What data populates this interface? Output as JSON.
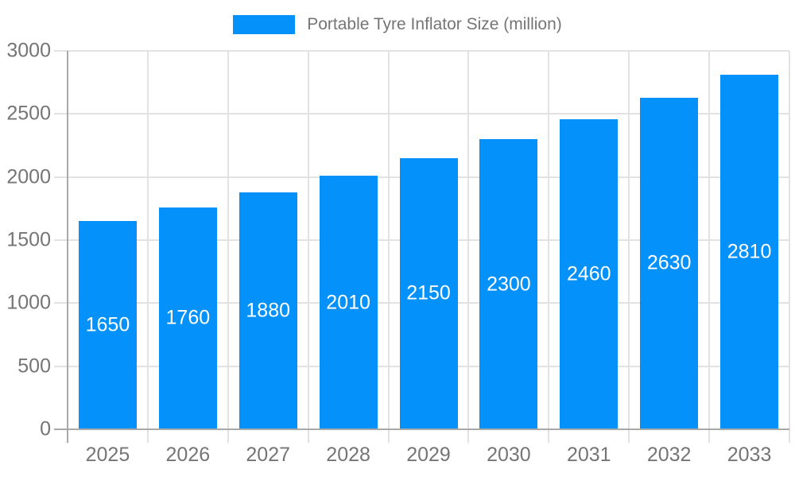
{
  "page": {
    "background": "#ffffff"
  },
  "legend": {
    "label": "Portable Tyre Inflator Size (million)"
  },
  "chart_data": {
    "type": "bar",
    "title": "Portable Tyre Inflator Size (million)",
    "categories": [
      "2025",
      "2026",
      "2027",
      "2028",
      "2029",
      "2030",
      "2031",
      "2032",
      "2033"
    ],
    "values": [
      1650,
      1760,
      1880,
      2010,
      2150,
      2300,
      2460,
      2630,
      2810
    ],
    "series": [
      {
        "name": "Portable Tyre Inflator Size (million)",
        "values": [
          1650,
          1760,
          1880,
          2010,
          2150,
          2300,
          2460,
          2630,
          2810
        ]
      }
    ],
    "xlabel": "",
    "ylabel": "",
    "ylim": [
      0,
      3000
    ],
    "yticks": [
      0,
      500,
      1000,
      1500,
      2000,
      2500,
      3000
    ],
    "grid": true,
    "bar_labels": true,
    "legend_position": "top",
    "colors": {
      "bar": "#0591fa",
      "bar_label": "#ffffff",
      "grid": "#e2e2e2",
      "axis": "#a9a9a9",
      "text": "#757575"
    }
  }
}
